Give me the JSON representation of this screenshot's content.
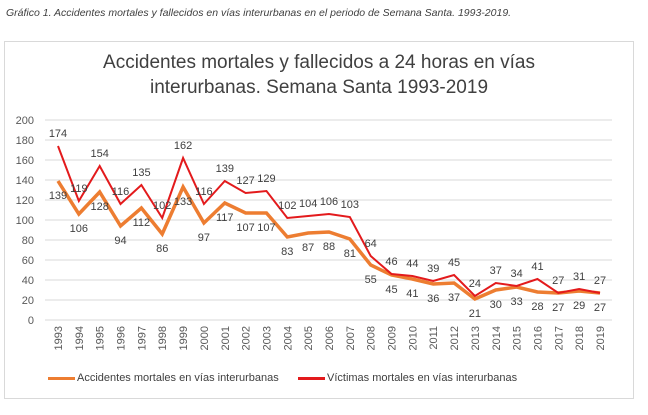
{
  "caption": "Gráfico 1. Accidentes mortales y fallecidos en vías interurbanas en el periodo de Semana Santa. 1993-2019.",
  "chart_data": {
    "type": "line",
    "title_line1": "Accidentes mortales y fallecidos a 24 horas en vías",
    "title_line2": "interurbanas. Semana Santa 1993-2019",
    "xlabel": "",
    "ylabel": "",
    "ylim": [
      0,
      200
    ],
    "yticks": [
      0,
      20,
      40,
      60,
      80,
      100,
      120,
      140,
      160,
      180,
      200
    ],
    "grid": true,
    "legend_position": "bottom",
    "categories": [
      "1993",
      "1994",
      "1995",
      "1996",
      "1997",
      "1998",
      "1999",
      "2000",
      "2001",
      "2002",
      "2003",
      "2004",
      "2005",
      "2006",
      "2007",
      "2008",
      "2009",
      "2010",
      "2011",
      "2012",
      "2013",
      "2014",
      "2015",
      "2016",
      "2017",
      "2018",
      "2019"
    ],
    "series": [
      {
        "name": "Accidentes mortales en vías interurbanas",
        "color": "#ED7D31",
        "label_position": "below",
        "values": [
          139,
          106,
          128,
          94,
          112,
          86,
          133,
          97,
          117,
          107,
          107,
          83,
          87,
          88,
          81,
          55,
          45,
          41,
          36,
          37,
          21,
          30,
          33,
          28,
          27,
          29,
          27
        ]
      },
      {
        "name": "Víctimas mortales en vías interurbanas",
        "color": "#E31A1C",
        "label_position": "above",
        "values": [
          174,
          119,
          154,
          116,
          135,
          102,
          162,
          116,
          139,
          127,
          129,
          102,
          104,
          106,
          103,
          64,
          46,
          44,
          39,
          45,
          24,
          37,
          34,
          41,
          27,
          31,
          27
        ]
      }
    ]
  }
}
